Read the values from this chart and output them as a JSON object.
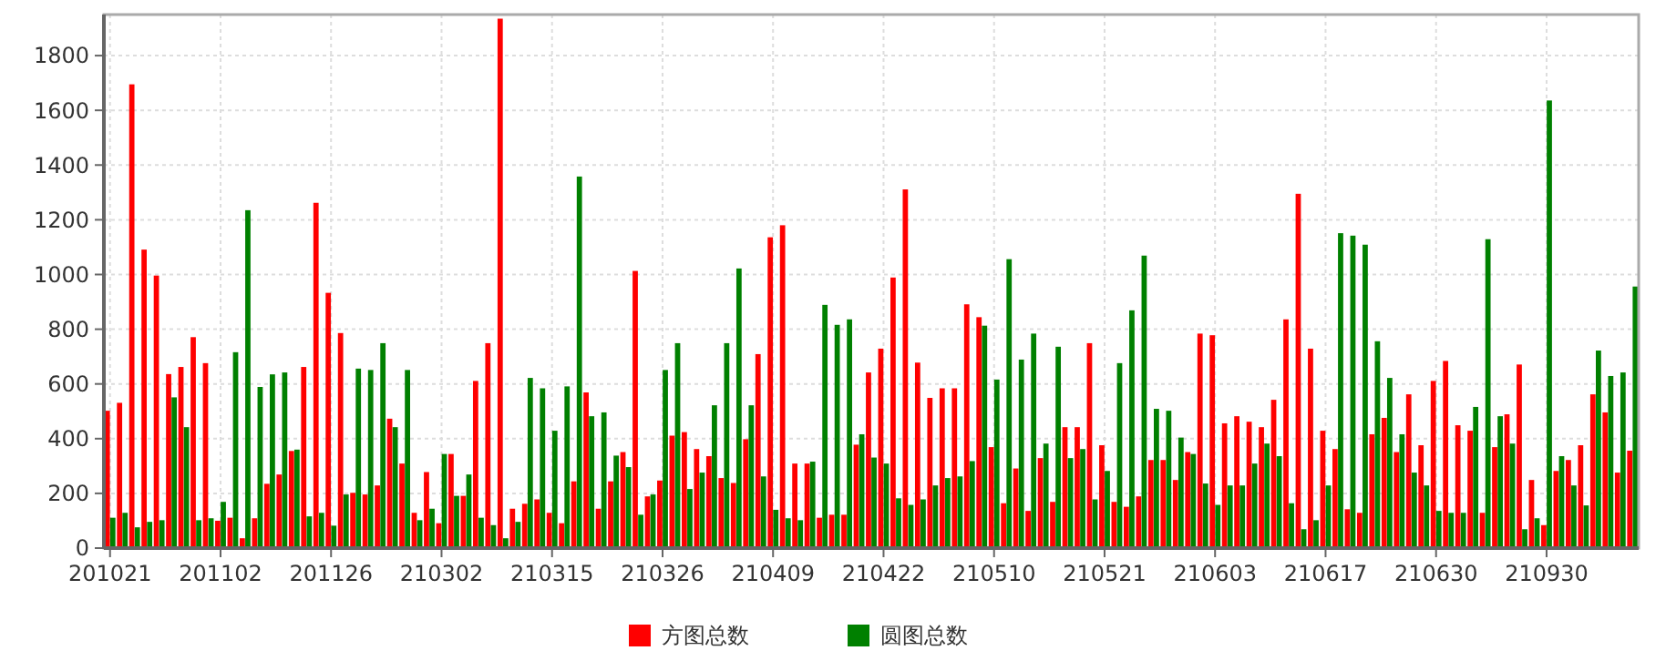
{
  "chart_data": {
    "type": "bar",
    "categories": [
      "201021",
      null,
      null,
      null,
      null,
      null,
      null,
      null,
      null,
      "201102",
      null,
      null,
      null,
      null,
      null,
      null,
      null,
      null,
      "201126",
      null,
      null,
      null,
      null,
      null,
      null,
      null,
      null,
      "210302",
      null,
      null,
      null,
      null,
      null,
      null,
      null,
      null,
      "210315",
      null,
      null,
      null,
      null,
      null,
      null,
      null,
      null,
      "210326",
      null,
      null,
      null,
      null,
      null,
      null,
      null,
      null,
      "210409",
      null,
      null,
      null,
      null,
      null,
      null,
      null,
      null,
      "210422",
      null,
      null,
      null,
      null,
      null,
      null,
      null,
      null,
      "210510",
      null,
      null,
      null,
      null,
      null,
      null,
      null,
      null,
      "210521",
      null,
      null,
      null,
      null,
      null,
      null,
      null,
      null,
      "210603",
      null,
      null,
      null,
      null,
      null,
      null,
      null,
      null,
      "210617",
      null,
      null,
      null,
      null,
      null,
      null,
      null,
      null,
      "210630",
      null,
      null,
      null,
      null,
      null,
      null,
      null,
      null,
      "210930",
      null,
      null,
      null,
      null,
      null,
      null,
      null
    ],
    "series": [
      {
        "name": "方图总数",
        "color": "#ff0000",
        "values": [
          502,
          531,
          1695,
          1091,
          996,
          636,
          662,
          771,
          676,
          100,
          111,
          36,
          109,
          235,
          269,
          355,
          662,
          1262,
          933,
          786,
          202,
          196,
          229,
          473,
          309,
          129,
          278,
          91,
          344,
          191,
          611,
          749,
          1935,
          144,
          162,
          178,
          129,
          91,
          244,
          569,
          144,
          244,
          351,
          1013,
          189,
          247,
          411,
          424,
          362,
          336,
          256,
          238,
          398,
          709,
          1136,
          1180,
          309,
          309,
          111,
          122,
          122,
          378,
          642,
          729,
          989,
          1311,
          678,
          549,
          584,
          584,
          891,
          844,
          369,
          164,
          291,
          136,
          329,
          169,
          442,
          442,
          749,
          376,
          169,
          151,
          189,
          322,
          322,
          249,
          351,
          784,
          778,
          456,
          482,
          462,
          442,
          542,
          836,
          1295,
          729,
          429,
          362,
          142,
          129,
          416,
          476,
          351,
          562,
          376,
          611,
          684,
          449,
          429,
          129,
          369,
          489,
          671,
          249,
          84,
          282,
          322,
          376,
          562,
          496,
          276,
          356
        ]
      },
      {
        "name": "圆图总数",
        "color": "#008000",
        "values": [
          111,
          129,
          76,
          96,
          102,
          551,
          442,
          102,
          109,
          169,
          716,
          1235,
          589,
          635,
          642,
          360,
          116,
          129,
          82,
          196,
          656,
          651,
          749,
          442,
          651,
          102,
          144,
          344,
          191,
          269,
          111,
          84,
          36,
          96,
          622,
          584,
          429,
          591,
          1358,
          482,
          496,
          338,
          296,
          122,
          196,
          651,
          749,
          216,
          276,
          522,
          749,
          1022,
          522,
          262,
          140,
          109,
          102,
          316,
          889,
          816,
          836,
          416,
          331,
          309,
          182,
          158,
          178,
          229,
          256,
          262,
          318,
          813,
          616,
          1056,
          689,
          784,
          382,
          736,
          329,
          362,
          178,
          282,
          676,
          869,
          1069,
          509,
          502,
          404,
          344,
          236,
          158,
          229,
          229,
          309,
          382,
          336,
          164,
          69,
          102,
          229,
          1151,
          1142,
          1109,
          756,
          622,
          416,
          276,
          229,
          136,
          129,
          129,
          516,
          1129,
          482,
          382,
          69,
          109,
          1636,
          336,
          229,
          156,
          722,
          629,
          642,
          956
        ]
      }
    ],
    "ylim": [
      0,
      1950
    ],
    "yticks": [
      0,
      200,
      400,
      600,
      800,
      1000,
      1200,
      1400,
      1600,
      1800
    ],
    "grid": true,
    "legend": "bottom"
  }
}
